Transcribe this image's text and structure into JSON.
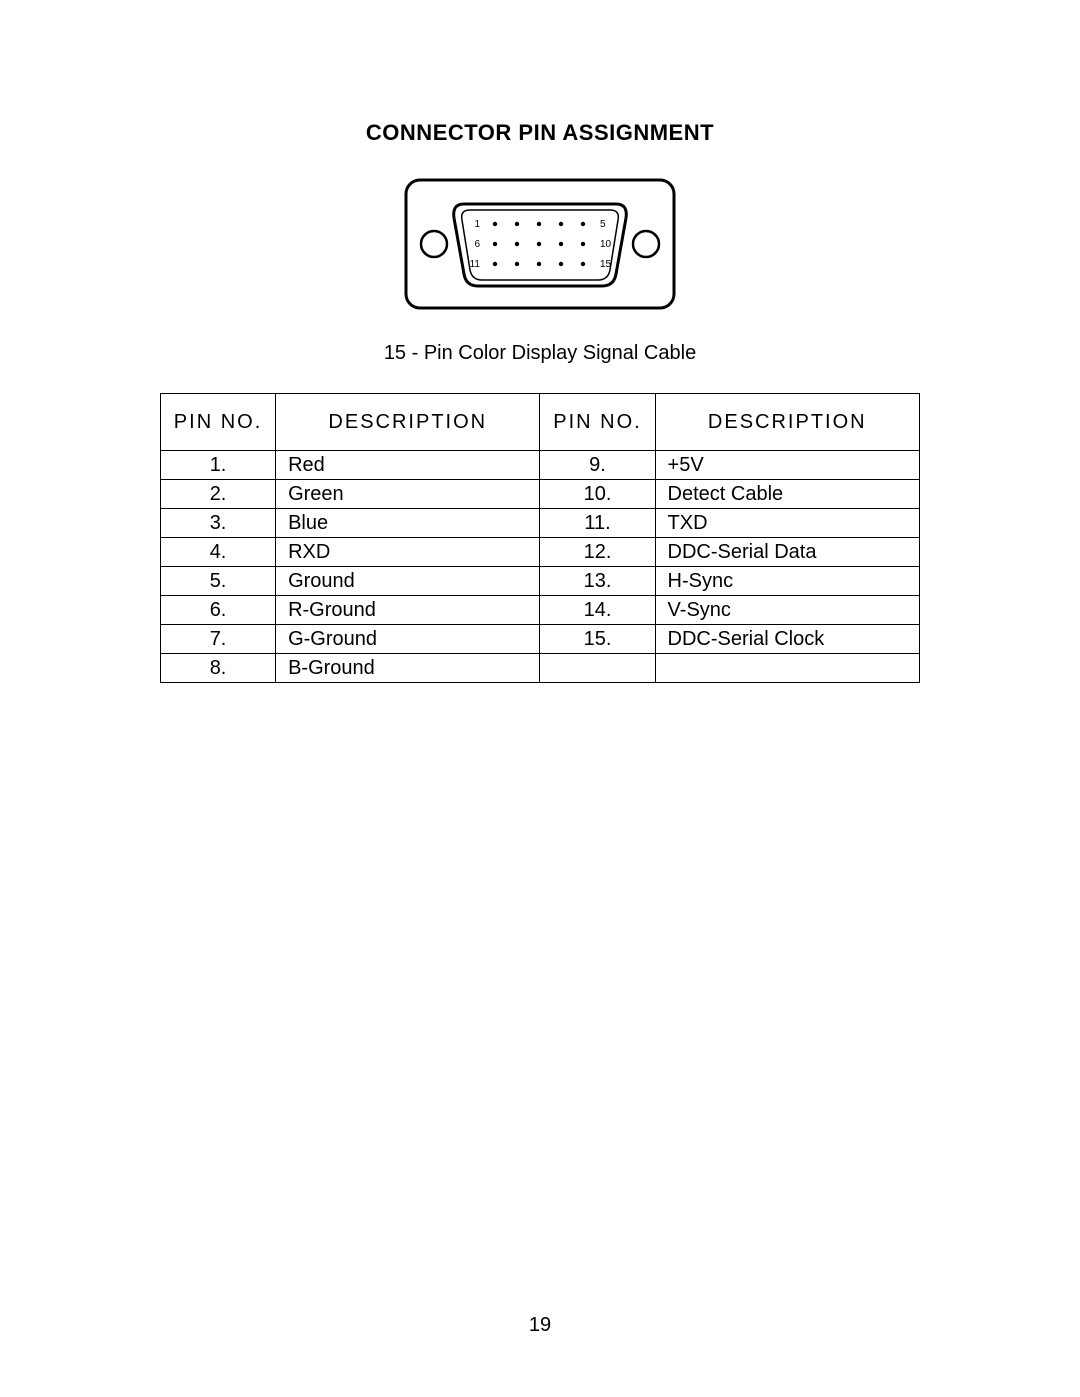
{
  "title": "CONNECTOR PIN ASSIGNMENT",
  "caption": "15 - Pin Color Display Signal Cable",
  "page_number": "19",
  "connector": {
    "label_top_left": "1",
    "label_top_right": "5",
    "label_mid_left": "6",
    "label_mid_right": "10",
    "label_bot_left": "11",
    "label_bot_right": "15",
    "outer_stroke": "#000000",
    "outer_stroke_width": 3,
    "inner_stroke_width": 2,
    "pin_radius": 2.2,
    "background": "#ffffff",
    "font_size": 10
  },
  "table": {
    "headers": [
      "PIN NO.",
      "DESCRIPTION",
      "PIN NO.",
      "DESCRIPTION"
    ],
    "rows": [
      [
        "1.",
        "Red",
        "9.",
        "+5V"
      ],
      [
        "2.",
        "Green",
        "10.",
        "Detect Cable"
      ],
      [
        "3.",
        "Blue",
        "11.",
        "TXD"
      ],
      [
        "4.",
        "RXD",
        "12.",
        "DDC-Serial Data"
      ],
      [
        "5.",
        "Ground",
        "13.",
        "H-Sync"
      ],
      [
        "6.",
        "R-Ground",
        "14.",
        "V-Sync"
      ],
      [
        "7.",
        "G-Ground",
        "15.",
        "DDC-Serial Clock"
      ],
      [
        "8.",
        "B-Ground",
        "",
        ""
      ]
    ],
    "border_color": "#000000",
    "font_size": 20
  }
}
